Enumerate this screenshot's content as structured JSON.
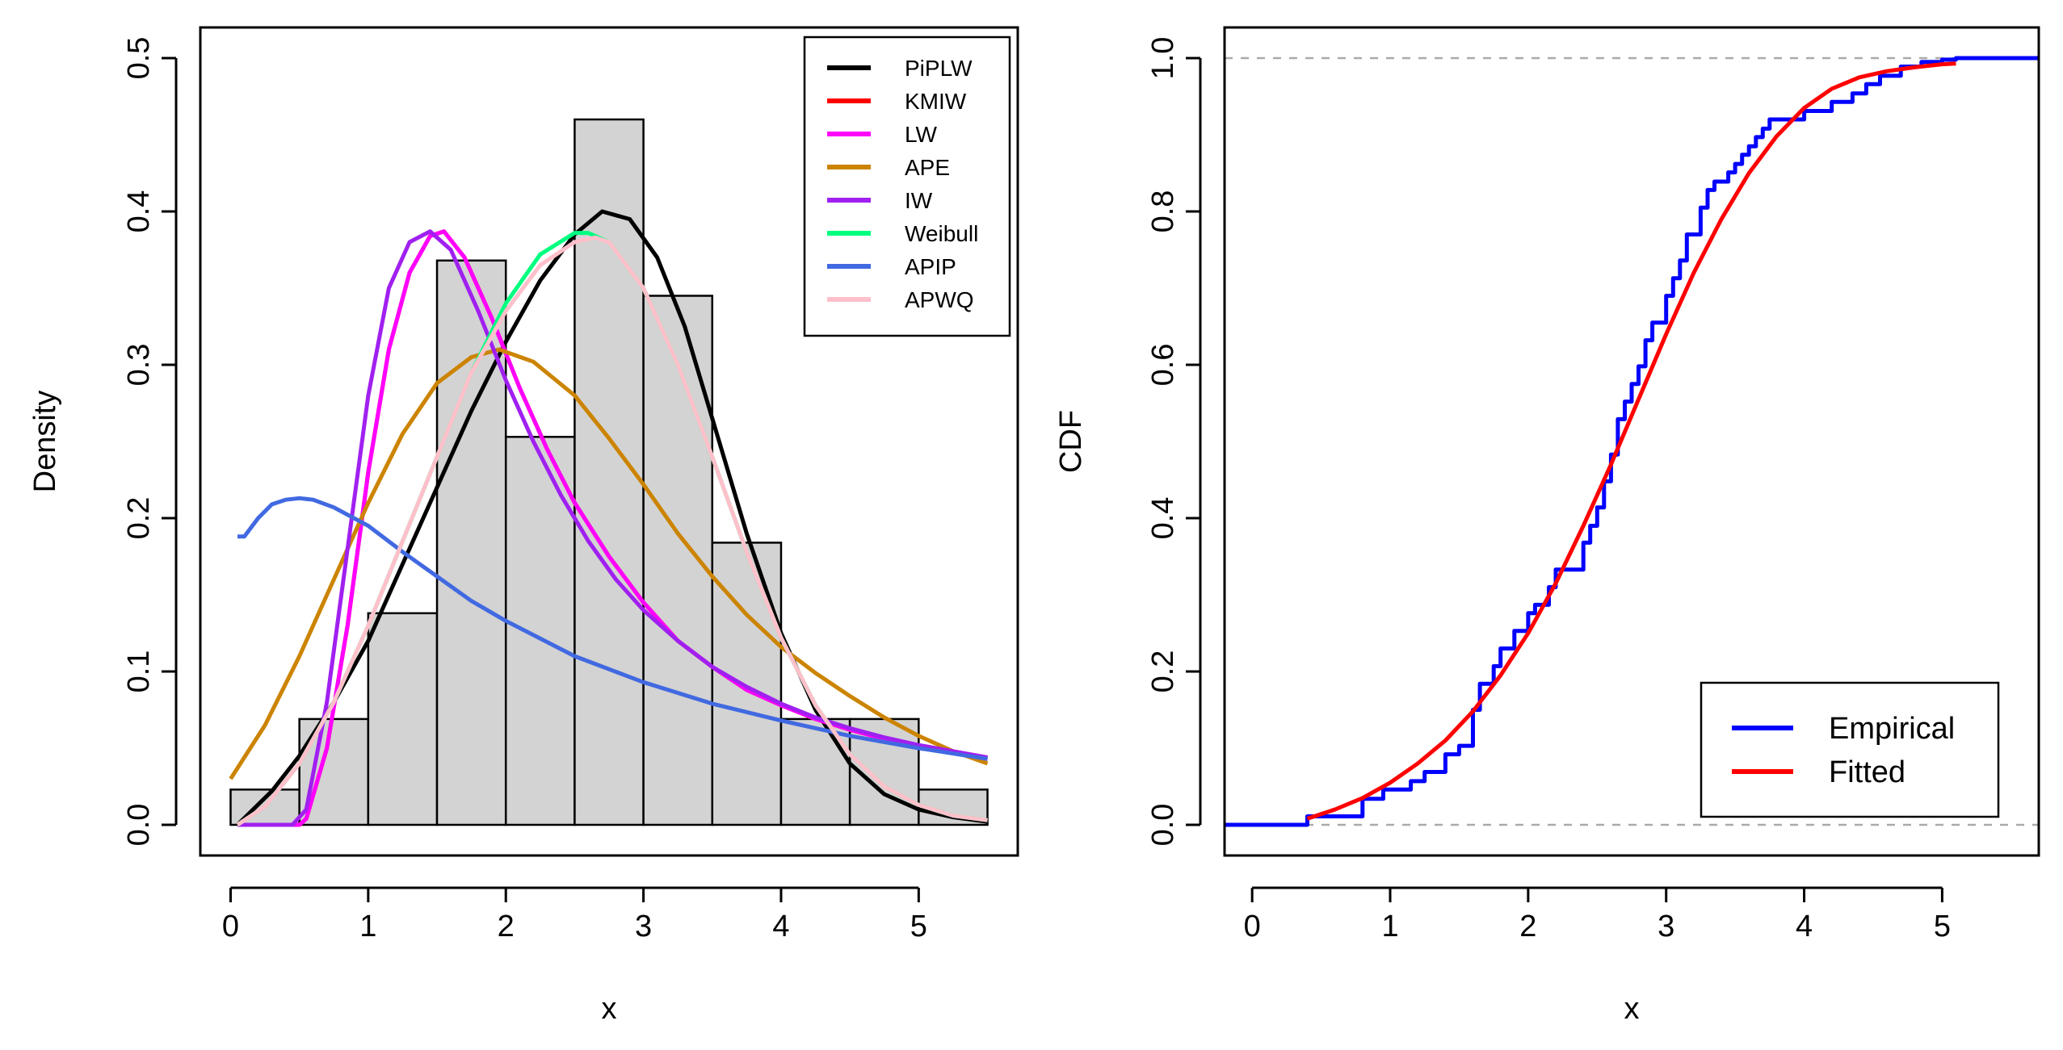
{
  "chart_data": [
    {
      "type": "histogram",
      "title": "",
      "xlabel": "x",
      "ylabel": "Density",
      "xlim": [
        -0.22,
        5.72
      ],
      "ylim": [
        -0.02,
        0.52
      ],
      "x_ticks": [
        0,
        1,
        2,
        3,
        4,
        5
      ],
      "x_tick_labels": [
        "0",
        "1",
        "2",
        "3",
        "4",
        "5"
      ],
      "y_ticks": [
        0.0,
        0.1,
        0.2,
        0.3,
        0.4,
        0.5
      ],
      "y_tick_labels": [
        "0.0",
        "0.1",
        "0.2",
        "0.3",
        "0.4",
        "0.5"
      ],
      "bar_color": "#d3d3d3",
      "bins": [
        {
          "x0": 0.0,
          "x1": 0.5,
          "density": 0.023
        },
        {
          "x0": 0.5,
          "x1": 1.0,
          "density": 0.069
        },
        {
          "x0": 1.0,
          "x1": 1.5,
          "density": 0.138
        },
        {
          "x0": 1.5,
          "x1": 2.0,
          "density": 0.368
        },
        {
          "x0": 2.0,
          "x1": 2.5,
          "density": 0.253
        },
        {
          "x0": 2.5,
          "x1": 3.0,
          "density": 0.46
        },
        {
          "x0": 3.0,
          "x1": 3.5,
          "density": 0.345
        },
        {
          "x0": 3.5,
          "x1": 4.0,
          "density": 0.184
        },
        {
          "x0": 4.0,
          "x1": 4.5,
          "density": 0.069
        },
        {
          "x0": 4.5,
          "x1": 5.0,
          "density": 0.069
        },
        {
          "x0": 5.0,
          "x1": 5.5,
          "density": 0.023
        }
      ],
      "legend_position": "top-right",
      "series": [
        {
          "name": "PiPLW",
          "color": "#000000",
          "x": [
            0.05,
            0.3,
            0.5,
            0.75,
            1.0,
            1.25,
            1.5,
            1.75,
            2.0,
            2.25,
            2.5,
            2.7,
            2.9,
            3.1,
            3.3,
            3.5,
            3.75,
            4.0,
            4.25,
            4.5,
            4.75,
            5.0,
            5.25,
            5.5
          ],
          "y": [
            0.0,
            0.022,
            0.045,
            0.08,
            0.12,
            0.17,
            0.22,
            0.27,
            0.315,
            0.355,
            0.385,
            0.4,
            0.395,
            0.37,
            0.325,
            0.265,
            0.19,
            0.125,
            0.075,
            0.04,
            0.02,
            0.01,
            0.005,
            0.002
          ]
        },
        {
          "name": "KMIW",
          "color": "#ff0000",
          "x": [
            0.05,
            0.3,
            0.5,
            0.55,
            0.7,
            0.85,
            1.0,
            1.15,
            1.3,
            1.45,
            1.55,
            1.7,
            1.9,
            2.1,
            2.3,
            2.5,
            2.75,
            3.0,
            3.25,
            3.5,
            3.75,
            4.0,
            4.25,
            4.5,
            4.75,
            5.0,
            5.25,
            5.5
          ],
          "y": [
            0.0,
            0.0,
            0.0,
            0.004,
            0.05,
            0.13,
            0.23,
            0.31,
            0.36,
            0.384,
            0.387,
            0.37,
            0.33,
            0.285,
            0.245,
            0.21,
            0.175,
            0.145,
            0.12,
            0.103,
            0.088,
            0.078,
            0.069,
            0.062,
            0.056,
            0.051,
            0.047,
            0.043
          ]
        },
        {
          "name": "LW",
          "color": "#ff00ff",
          "x": [
            0.05,
            0.3,
            0.5,
            0.55,
            0.7,
            0.85,
            1.0,
            1.15,
            1.3,
            1.45,
            1.55,
            1.7,
            1.9,
            2.1,
            2.3,
            2.5,
            2.75,
            3.0,
            3.25,
            3.5,
            3.75,
            4.0,
            4.25,
            4.5,
            4.75,
            5.0,
            5.25,
            5.5
          ],
          "y": [
            0.0,
            0.0,
            0.0,
            0.004,
            0.05,
            0.13,
            0.23,
            0.31,
            0.36,
            0.384,
            0.387,
            0.37,
            0.33,
            0.285,
            0.245,
            0.21,
            0.175,
            0.145,
            0.12,
            0.103,
            0.088,
            0.078,
            0.069,
            0.062,
            0.056,
            0.051,
            0.047,
            0.043
          ]
        },
        {
          "name": "APE",
          "color": "#cc8400",
          "x": [
            0.0,
            0.25,
            0.5,
            0.75,
            1.0,
            1.25,
            1.5,
            1.75,
            1.95,
            2.2,
            2.5,
            2.75,
            3.0,
            3.25,
            3.5,
            3.75,
            4.0,
            4.25,
            4.5,
            4.75,
            5.0,
            5.25,
            5.5
          ],
          "y": [
            0.03,
            0.065,
            0.11,
            0.16,
            0.21,
            0.255,
            0.288,
            0.305,
            0.31,
            0.302,
            0.28,
            0.252,
            0.222,
            0.19,
            0.162,
            0.137,
            0.116,
            0.099,
            0.084,
            0.07,
            0.058,
            0.048,
            0.04
          ]
        },
        {
          "name": "IW",
          "color": "#a020f0",
          "x": [
            0.05,
            0.3,
            0.45,
            0.55,
            0.7,
            0.85,
            1.0,
            1.15,
            1.3,
            1.45,
            1.6,
            1.8,
            2.0,
            2.2,
            2.4,
            2.6,
            2.8,
            3.0,
            3.25,
            3.5,
            3.75,
            4.0,
            4.25,
            4.5,
            4.75,
            5.0,
            5.25,
            5.5
          ],
          "y": [
            0.0,
            0.0,
            0.0,
            0.01,
            0.08,
            0.18,
            0.28,
            0.35,
            0.38,
            0.387,
            0.375,
            0.335,
            0.29,
            0.25,
            0.215,
            0.185,
            0.16,
            0.14,
            0.12,
            0.103,
            0.09,
            0.079,
            0.07,
            0.063,
            0.057,
            0.052,
            0.048,
            0.044
          ]
        },
        {
          "name": "Weibull",
          "color": "#00ff7f",
          "x": [
            0.05,
            0.25,
            0.5,
            0.75,
            1.0,
            1.25,
            1.5,
            1.75,
            2.0,
            2.25,
            2.5,
            2.6,
            2.75,
            3.0,
            3.25,
            3.5,
            3.75,
            4.0,
            4.25,
            4.5,
            4.75,
            5.0,
            5.25,
            5.5
          ],
          "y": [
            0.0,
            0.012,
            0.04,
            0.08,
            0.13,
            0.185,
            0.24,
            0.295,
            0.34,
            0.372,
            0.386,
            0.386,
            0.38,
            0.35,
            0.3,
            0.24,
            0.178,
            0.122,
            0.078,
            0.046,
            0.025,
            0.013,
            0.006,
            0.003
          ]
        },
        {
          "name": "APIP",
          "color": "#4169e1",
          "x": [
            0.05,
            0.1,
            0.2,
            0.3,
            0.4,
            0.5,
            0.6,
            0.75,
            1.0,
            1.25,
            1.5,
            1.75,
            2.0,
            2.5,
            3.0,
            3.5,
            4.0,
            4.5,
            5.0,
            5.5
          ],
          "y": [
            0.188,
            0.188,
            0.2,
            0.209,
            0.212,
            0.213,
            0.212,
            0.207,
            0.195,
            0.178,
            0.162,
            0.146,
            0.133,
            0.11,
            0.093,
            0.079,
            0.068,
            0.058,
            0.05,
            0.043
          ]
        },
        {
          "name": "APWQ",
          "color": "#ffc0cb",
          "x": [
            0.05,
            0.25,
            0.5,
            0.75,
            1.0,
            1.25,
            1.5,
            1.75,
            2.0,
            2.25,
            2.5,
            2.65,
            2.75,
            3.0,
            3.25,
            3.5,
            3.75,
            4.0,
            4.25,
            4.5,
            4.75,
            5.0,
            5.25,
            5.5
          ],
          "y": [
            0.0,
            0.012,
            0.04,
            0.08,
            0.13,
            0.185,
            0.24,
            0.295,
            0.335,
            0.365,
            0.38,
            0.383,
            0.38,
            0.35,
            0.3,
            0.24,
            0.178,
            0.122,
            0.078,
            0.046,
            0.025,
            0.013,
            0.006,
            0.003
          ]
        }
      ]
    },
    {
      "type": "line",
      "title": "",
      "xlabel": "x",
      "ylabel": "CDF",
      "xlim": [
        -0.2,
        5.7
      ],
      "ylim": [
        -0.04,
        1.04
      ],
      "x_ticks": [
        0,
        1,
        2,
        3,
        4,
        5
      ],
      "x_tick_labels": [
        "0",
        "1",
        "2",
        "3",
        "4",
        "5"
      ],
      "y_ticks": [
        0.0,
        0.2,
        0.4,
        0.6,
        0.8,
        1.0
      ],
      "y_tick_labels": [
        "0.0",
        "0.2",
        "0.4",
        "0.6",
        "0.8",
        "1.0"
      ],
      "reference_lines": [
        0.0,
        1.0
      ],
      "legend_position": "bottom-right",
      "series": [
        {
          "name": "Empirical",
          "color": "#0000ff",
          "kind": "step",
          "x_start": -0.2,
          "x_end": 5.7,
          "x": [
            0.4,
            0.8,
            0.95,
            1.15,
            1.25,
            1.4,
            1.5,
            1.6,
            1.65,
            1.75,
            1.8,
            1.9,
            2.0,
            2.05,
            2.15,
            2.2,
            2.4,
            2.45,
            2.5,
            2.55,
            2.6,
            2.65,
            2.7,
            2.75,
            2.8,
            2.85,
            2.9,
            3.0,
            3.05,
            3.1,
            3.15,
            3.25,
            3.3,
            3.35,
            3.45,
            3.5,
            3.55,
            3.6,
            3.65,
            3.7,
            3.75,
            4.0,
            4.2,
            4.35,
            4.45,
            4.55,
            4.7,
            4.85,
            5.0,
            5.1
          ],
          "y": [
            0.011,
            0.034,
            0.046,
            0.057,
            0.069,
            0.092,
            0.103,
            0.15,
            0.184,
            0.207,
            0.23,
            0.253,
            0.276,
            0.287,
            0.31,
            0.333,
            0.368,
            0.39,
            0.414,
            0.448,
            0.483,
            0.529,
            0.552,
            0.575,
            0.598,
            0.632,
            0.655,
            0.69,
            0.713,
            0.736,
            0.77,
            0.805,
            0.828,
            0.839,
            0.851,
            0.862,
            0.874,
            0.885,
            0.897,
            0.908,
            0.92,
            0.931,
            0.943,
            0.954,
            0.966,
            0.977,
            0.989,
            0.995,
            0.998,
            1.0
          ]
        },
        {
          "name": "Fitted",
          "color": "#ff0000",
          "kind": "line",
          "x": [
            0.4,
            0.6,
            0.8,
            1.0,
            1.2,
            1.4,
            1.6,
            1.8,
            2.0,
            2.2,
            2.4,
            2.6,
            2.8,
            3.0,
            3.2,
            3.4,
            3.6,
            3.8,
            4.0,
            4.2,
            4.4,
            4.6,
            4.8,
            5.0,
            5.1
          ],
          "y": [
            0.008,
            0.02,
            0.035,
            0.055,
            0.08,
            0.11,
            0.148,
            0.195,
            0.25,
            0.315,
            0.39,
            0.47,
            0.555,
            0.64,
            0.72,
            0.79,
            0.85,
            0.898,
            0.935,
            0.96,
            0.975,
            0.983,
            0.988,
            0.992,
            0.993
          ]
        }
      ]
    }
  ]
}
